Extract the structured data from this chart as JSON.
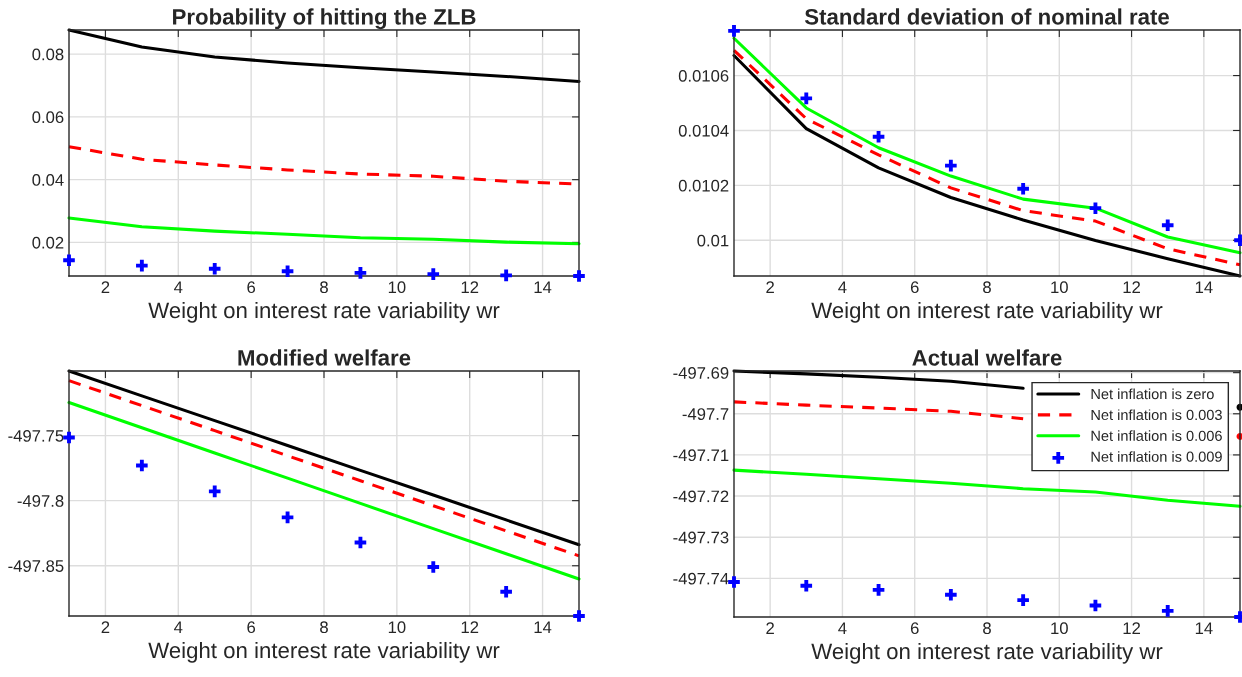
{
  "chart_data": [
    {
      "type": "line",
      "title": "Probability of hitting the ZLB",
      "xlabel": "Weight on interest rate variability wr",
      "x": [
        1,
        3,
        5,
        7,
        9,
        11,
        13,
        15
      ],
      "xlim": [
        1,
        15
      ],
      "xticks": [
        2,
        4,
        6,
        8,
        10,
        12,
        14
      ],
      "ylim": [
        0.0093,
        0.0877
      ],
      "yticks": [
        0.02,
        0.04,
        0.06,
        0.08
      ],
      "grid": true,
      "series": [
        {
          "color": "#000000",
          "line_style": "solid",
          "values": [
            0.0877,
            0.0823,
            0.0791,
            0.0772,
            0.0757,
            0.0743,
            0.0729,
            0.0713
          ]
        },
        {
          "color": "#ff0000",
          "line_style": "dashed",
          "values": [
            0.0505,
            0.0465,
            0.0447,
            0.0431,
            0.0418,
            0.0411,
            0.0395,
            0.0386
          ]
        },
        {
          "color": "#00ff00",
          "line_style": "solid",
          "values": [
            0.0278,
            0.025,
            0.0236,
            0.0226,
            0.0215,
            0.021,
            0.0201,
            0.0196
          ]
        },
        {
          "type": "scatter",
          "marker": "cross",
          "color": "#0000ff",
          "values": [
            0.0143,
            0.0126,
            0.0116,
            0.0108,
            0.0103,
            0.0099,
            0.0095,
            0.0093
          ]
        }
      ]
    },
    {
      "type": "line",
      "title": "Standard deviation of nominal rate",
      "xlabel": "Weight on interest rate variability wr",
      "x": [
        1,
        3,
        5,
        7,
        9,
        11,
        13,
        15
      ],
      "xlim": [
        1,
        15
      ],
      "xticks": [
        2,
        4,
        6,
        8,
        10,
        12,
        14
      ],
      "ylim": [
        0.00987,
        0.010766
      ],
      "yticks": [
        0.01,
        0.0102,
        0.0104,
        0.0106
      ],
      "grid": true,
      "series": [
        {
          "color": "#000000",
          "line_style": "solid",
          "values": [
            0.010673,
            0.010407,
            0.010264,
            0.010156,
            0.010074,
            0.009999,
            0.009933,
            0.00987
          ]
        },
        {
          "color": "#ff0000",
          "line_style": "dashed",
          "values": [
            0.010692,
            0.010443,
            0.010311,
            0.010191,
            0.010108,
            0.01007,
            0.009969,
            0.009911
          ]
        },
        {
          "color": "#00ff00",
          "line_style": "solid",
          "values": [
            0.010736,
            0.010482,
            0.010337,
            0.010234,
            0.01015,
            0.010117,
            0.010012,
            0.009955
          ]
        },
        {
          "type": "scatter",
          "marker": "cross",
          "color": "#0000ff",
          "values": [
            0.010763,
            0.010517,
            0.010377,
            0.010272,
            0.010188,
            0.010117,
            0.010055,
            0.01
          ]
        }
      ]
    },
    {
      "type": "line",
      "title": "Modified welfare",
      "xlabel": "Weight on interest rate variability wr",
      "x": [
        1,
        3,
        5,
        7,
        9,
        11,
        13,
        15
      ],
      "xlim": [
        1,
        15
      ],
      "xticks": [
        2,
        4,
        6,
        8,
        10,
        12,
        14
      ],
      "ylim": [
        -497.8886,
        -497.7004
      ],
      "yticks": [
        -497.85,
        -497.8,
        -497.75
      ],
      "grid": true,
      "series": [
        {
          "color": "#000000",
          "line_style": "solid",
          "values": [
            -497.7004,
            -497.7195,
            -497.7385,
            -497.7576,
            -497.7767,
            -497.7957,
            -497.8148,
            -497.8339
          ]
        },
        {
          "color": "#ff0000",
          "line_style": "dashed",
          "values": [
            -497.7078,
            -497.727,
            -497.7462,
            -497.7655,
            -497.7847,
            -497.8039,
            -497.8232,
            -497.8424
          ]
        },
        {
          "color": "#00ff00",
          "line_style": "solid",
          "values": [
            -497.7246,
            -497.744,
            -497.7634,
            -497.7827,
            -497.8021,
            -497.8215,
            -497.8408,
            -497.8602
          ]
        },
        {
          "type": "scatter",
          "marker": "cross",
          "color": "#0000ff",
          "values": [
            -497.7515,
            -497.773,
            -497.7929,
            -497.8128,
            -497.8321,
            -497.851,
            -497.87,
            -497.8886
          ]
        }
      ]
    },
    {
      "type": "line",
      "title": "Actual welfare",
      "xlabel": "Weight on interest rate variability wr",
      "x": [
        1,
        3,
        5,
        7,
        9,
        11,
        13,
        15
      ],
      "xlim": [
        1,
        15
      ],
      "xticks": [
        2,
        4,
        6,
        8,
        10,
        12,
        14
      ],
      "ylim": [
        -497.7494,
        -497.6896
      ],
      "yticks": [
        -497.74,
        -497.73,
        -497.72,
        -497.71,
        -497.7,
        -497.69
      ],
      "grid": true,
      "legend": "top right",
      "series": [
        {
          "name": "Net inflation is zero",
          "color": "#000000",
          "line_style": "solid",
          "values": [
            -497.6896,
            -497.6903,
            -497.6911,
            -497.6921,
            -497.6938,
            null,
            null,
            -497.6984
          ]
        },
        {
          "name": "Net inflation is 0.003",
          "color": "#ff0000",
          "line_style": "dashed",
          "values": [
            -497.6971,
            -497.6979,
            -497.6986,
            -497.6994,
            -497.7012,
            null,
            null,
            -497.7055
          ]
        },
        {
          "name": "Net inflation is 0.006",
          "color": "#00ff00",
          "line_style": "solid",
          "values": [
            -497.7137,
            -497.7147,
            -497.7158,
            -497.7169,
            -497.7182,
            -497.719,
            -497.721,
            -497.7225
          ]
        },
        {
          "name": "Net inflation is 0.009",
          "type": "scatter",
          "marker": "cross",
          "color": "#0000ff",
          "values": [
            -497.7409,
            -497.7418,
            -497.7428,
            -497.744,
            -497.7453,
            -497.7466,
            -497.7479,
            -497.7494
          ]
        }
      ]
    }
  ]
}
